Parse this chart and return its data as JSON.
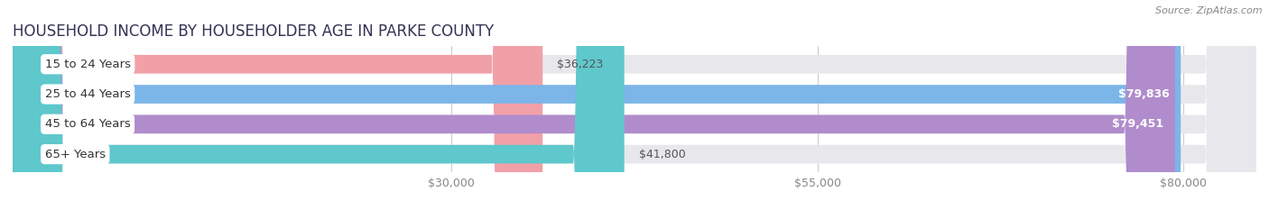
{
  "title": "HOUSEHOLD INCOME BY HOUSEHOLDER AGE IN PARKE COUNTY",
  "source": "Source: ZipAtlas.com",
  "categories": [
    "15 to 24 Years",
    "25 to 44 Years",
    "45 to 64 Years",
    "65+ Years"
  ],
  "values": [
    36223,
    79836,
    79451,
    41800
  ],
  "bar_colors": [
    "#f2a0a8",
    "#7cb5e8",
    "#b08ccc",
    "#5ec8cc"
  ],
  "label_colors": [
    "#555555",
    "#ffffff",
    "#ffffff",
    "#555555"
  ],
  "value_labels": [
    "$36,223",
    "$79,836",
    "$79,451",
    "$41,800"
  ],
  "bar_bg_color": "#e8e8ec",
  "x_ticks": [
    30000,
    55000,
    80000
  ],
  "x_tick_labels": [
    "$30,000",
    "$55,000",
    "$80,000"
  ],
  "xmin": 0,
  "xmax": 85000,
  "background_color": "#ffffff",
  "title_fontsize": 12,
  "source_fontsize": 8,
  "label_fontsize": 9.5,
  "value_fontsize": 9,
  "tick_fontsize": 9
}
